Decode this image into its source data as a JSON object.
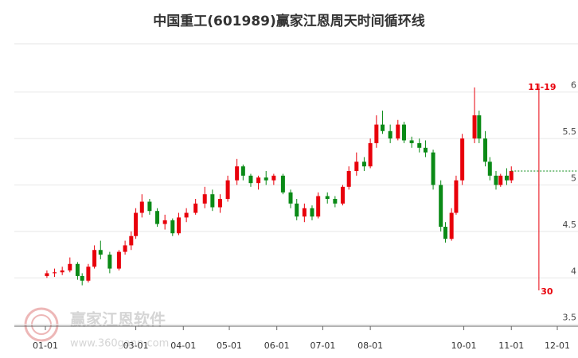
{
  "chart_data": {
    "type": "candlestick",
    "title": "中国重工(601989)赢家江恩周天时间循环线",
    "x": [
      "01-02",
      "01-07",
      "01-12",
      "01-17",
      "01-22",
      "01-25",
      "01-29",
      "02-02",
      "02-06",
      "02-12",
      "02-18",
      "02-22",
      "02-26",
      "03-01",
      "03-05",
      "03-10",
      "03-15",
      "03-20",
      "03-25",
      "03-29",
      "04-03",
      "04-09",
      "04-15",
      "04-20",
      "04-25",
      "04-30",
      "05-06",
      "05-10",
      "05-15",
      "05-20",
      "05-25",
      "05-30",
      "06-05",
      "06-10",
      "06-14",
      "06-19",
      "06-24",
      "06-28",
      "07-04",
      "07-09",
      "07-14",
      "07-18",
      "07-23",
      "07-28",
      "08-01",
      "08-05",
      "08-09",
      "08-14",
      "08-19",
      "08-23",
      "08-28",
      "09-02",
      "09-06",
      "09-11",
      "09-16",
      "09-19",
      "09-23",
      "09-26",
      "09-30",
      "10-08",
      "10-11",
      "10-15",
      "10-18",
      "10-22",
      "10-25",
      "10-29",
      "11-01"
    ],
    "open": [
      4.02,
      4.05,
      4.06,
      4.08,
      4.15,
      4.02,
      3.97,
      4.12,
      4.3,
      4.25,
      4.1,
      4.28,
      4.35,
      4.45,
      4.7,
      4.82,
      4.72,
      4.58,
      4.62,
      4.48,
      4.65,
      4.7,
      4.8,
      4.9,
      4.76,
      4.85,
      5.05,
      5.2,
      5.1,
      5.02,
      5.08,
      5.05,
      5.1,
      4.92,
      4.8,
      4.66,
      4.75,
      4.66,
      4.88,
      4.85,
      4.8,
      4.98,
      5.15,
      5.25,
      5.2,
      5.45,
      5.65,
      5.58,
      5.5,
      5.65,
      5.48,
      5.45,
      5.4,
      5.35,
      5.0,
      4.55,
      4.42,
      4.7,
      5.05,
      5.5,
      5.75,
      5.5,
      5.25,
      5.1,
      5.0,
      5.1,
      5.05
    ],
    "high": [
      4.08,
      4.1,
      4.12,
      4.22,
      4.17,
      4.05,
      4.15,
      4.35,
      4.4,
      4.28,
      4.3,
      4.4,
      4.5,
      4.75,
      4.9,
      4.85,
      4.75,
      4.68,
      4.64,
      4.7,
      4.75,
      4.85,
      4.98,
      4.95,
      4.9,
      5.1,
      5.28,
      5.22,
      5.12,
      5.1,
      5.15,
      5.12,
      5.12,
      4.95,
      4.85,
      4.8,
      4.78,
      4.92,
      4.92,
      4.88,
      5.0,
      5.2,
      5.35,
      5.3,
      5.5,
      5.75,
      5.8,
      5.65,
      5.7,
      5.68,
      5.52,
      5.5,
      5.48,
      5.38,
      5.05,
      4.6,
      4.75,
      5.1,
      5.55,
      6.05,
      5.8,
      5.58,
      5.3,
      5.15,
      5.12,
      5.18,
      5.2
    ],
    "low": [
      4.0,
      4.01,
      4.03,
      4.06,
      3.98,
      3.92,
      3.95,
      4.1,
      4.2,
      4.05,
      4.08,
      4.25,
      4.3,
      4.42,
      4.65,
      4.68,
      4.55,
      4.52,
      4.45,
      4.46,
      4.6,
      4.68,
      4.75,
      4.72,
      4.7,
      4.82,
      5.0,
      5.05,
      4.98,
      4.95,
      5.0,
      5.0,
      4.9,
      4.75,
      4.62,
      4.6,
      4.62,
      4.64,
      4.8,
      4.76,
      4.78,
      4.95,
      5.1,
      5.15,
      5.18,
      5.4,
      5.55,
      5.45,
      5.48,
      5.45,
      5.4,
      5.35,
      5.3,
      4.95,
      4.5,
      4.38,
      4.4,
      4.68,
      5.0,
      5.45,
      5.45,
      5.2,
      5.05,
      4.95,
      4.98,
      5.0,
      5.02
    ],
    "close": [
      4.05,
      4.06,
      4.08,
      4.15,
      4.02,
      3.97,
      4.12,
      4.3,
      4.25,
      4.1,
      4.28,
      4.35,
      4.45,
      4.7,
      4.82,
      4.72,
      4.58,
      4.62,
      4.48,
      4.65,
      4.7,
      4.8,
      4.9,
      4.76,
      4.85,
      5.05,
      5.2,
      5.1,
      5.02,
      5.08,
      5.05,
      5.1,
      4.92,
      4.8,
      4.66,
      4.75,
      4.66,
      4.88,
      4.85,
      4.8,
      4.98,
      5.15,
      5.25,
      5.2,
      5.45,
      5.65,
      5.58,
      5.5,
      5.65,
      5.48,
      5.45,
      5.4,
      5.35,
      5.0,
      4.55,
      4.42,
      4.7,
      5.05,
      5.5,
      5.75,
      5.5,
      5.25,
      5.1,
      5.0,
      5.1,
      5.05,
      5.15
    ],
    "up_color": "#e8000b",
    "down_color": "#0a8a16",
    "ylim": [
      3.48,
      6.52
    ],
    "yticks": [
      3.5,
      4,
      4.5,
      5,
      5.5,
      6
    ],
    "xticks": [
      "01-01",
      "03-01",
      "04-01",
      "05-01",
      "06-01",
      "07-01",
      "08-01",
      "10-01",
      "11-01",
      "12-01"
    ],
    "grid": true,
    "cycle_line": {
      "date": "11-19",
      "label": 30,
      "color": "#e8000b"
    }
  },
  "watermark": {
    "name": "赢家江恩软件",
    "url": "www.360gann.com"
  }
}
